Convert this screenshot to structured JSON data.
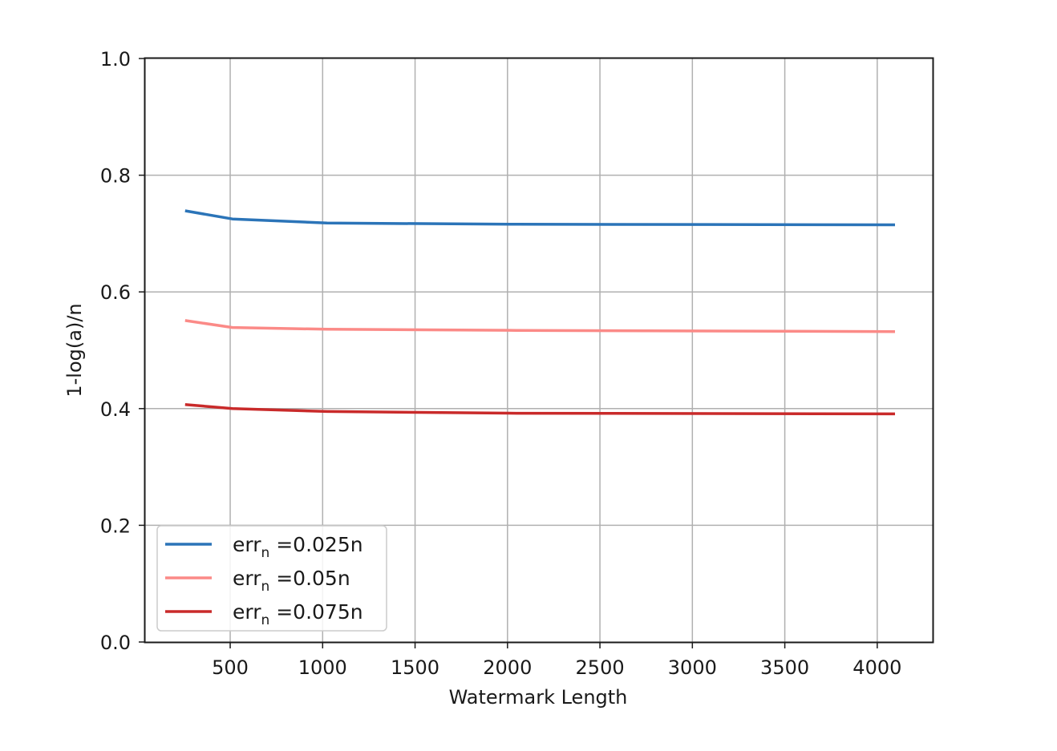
{
  "chart_data": {
    "type": "line",
    "xlabel": "Watermark Length",
    "ylabel": "1-log(a)/n",
    "xlim": [
      40,
      4300
    ],
    "ylim": [
      0.0,
      1.0
    ],
    "x_ticks": [
      500,
      1000,
      1500,
      2000,
      2500,
      3000,
      3500,
      4000
    ],
    "y_ticks": [
      0.0,
      0.2,
      0.4,
      0.6,
      0.8,
      1.0
    ],
    "y_tick_labels": [
      "0.0",
      "0.2",
      "0.4",
      "0.6",
      "0.8",
      "1.0"
    ],
    "grid": true,
    "legend_position": "lower-left",
    "x": [
      256,
      512,
      1024,
      2048,
      4096
    ],
    "series": [
      {
        "name": "err_n =0.025n",
        "legend_main": "err",
        "legend_sub": "n",
        "legend_rest": " =0.025n",
        "color": "#2b74b8",
        "values": [
          0.739,
          0.725,
          0.718,
          0.716,
          0.715
        ]
      },
      {
        "name": "err_n =0.05n",
        "legend_main": "err",
        "legend_sub": "n",
        "legend_rest": " =0.05n",
        "color": "#fb8a87",
        "values": [
          0.551,
          0.539,
          0.536,
          0.534,
          0.532
        ]
      },
      {
        "name": "err_n =0.075n",
        "legend_main": "err",
        "legend_sub": "n",
        "legend_rest": " =0.075n",
        "color": "#c92a2a",
        "values": [
          0.407,
          0.4,
          0.395,
          0.392,
          0.391
        ]
      }
    ]
  }
}
